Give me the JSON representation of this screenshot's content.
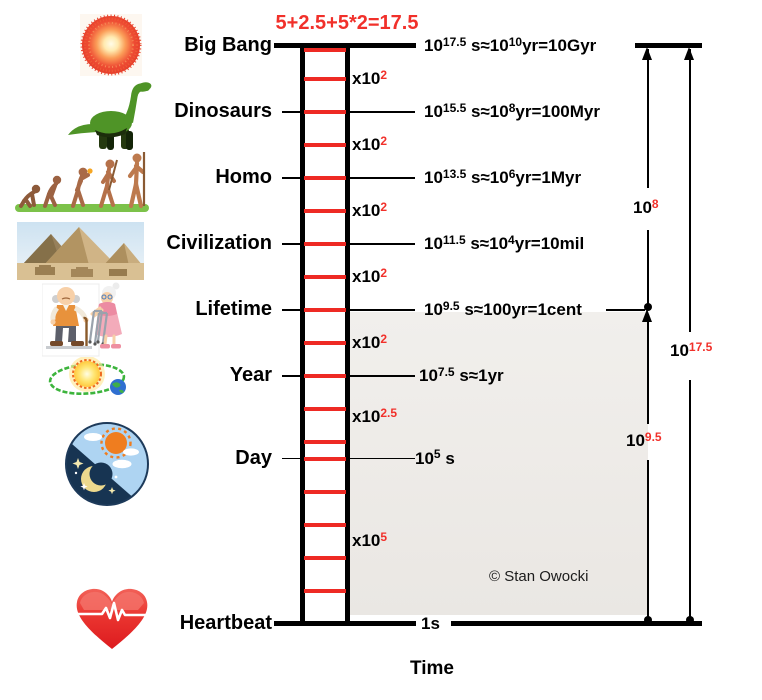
{
  "title": "5+2.5+5*2=17.5",
  "axis_label": "Time",
  "copyright": "© Stan Owocki",
  "colors": {
    "accent_red": "#f1302a",
    "rung_red": "#ee2a24",
    "black": "#000000",
    "shade_gray": "#eeebe8"
  },
  "scale": {
    "description": "logarithmic time scale in seconds",
    "top_exponent": 17.5,
    "bottom_exponent": 0,
    "rung_exponents": [
      17.5,
      16.5,
      15.5,
      14.5,
      13.5,
      12.5,
      11.5,
      10.5,
      9.5,
      8.5,
      7.5,
      6.5,
      5.5,
      5,
      4,
      3,
      2,
      1
    ]
  },
  "rows": [
    {
      "label": "Big Bang",
      "exponent": 17.5,
      "icon": "big-bang-icon",
      "segments": [
        {
          "t": "10"
        },
        {
          "t": "17.5",
          "sup": true
        },
        {
          "t": " s≈10"
        },
        {
          "t": "10",
          "sup": true
        },
        {
          "t": "yr=10Gyr"
        }
      ]
    },
    {
      "label": "Dinosaurs",
      "exponent": 15.5,
      "icon": "dinosaur-icon",
      "segments": [
        {
          "t": "10"
        },
        {
          "t": "15.5",
          "sup": true
        },
        {
          "t": " s≈10"
        },
        {
          "t": "8",
          "sup": true
        },
        {
          "t": "yr=100Myr"
        }
      ]
    },
    {
      "label": "Homo",
      "exponent": 13.5,
      "icon": "human-evolution-icon",
      "segments": [
        {
          "t": "10"
        },
        {
          "t": "13.5",
          "sup": true
        },
        {
          "t": " s≈10"
        },
        {
          "t": "6",
          "sup": true
        },
        {
          "t": "yr=1Myr"
        }
      ]
    },
    {
      "label": "Civilization",
      "exponent": 11.5,
      "icon": "pyramids-icon",
      "segments": [
        {
          "t": "10"
        },
        {
          "t": "11.5",
          "sup": true
        },
        {
          "t": " s≈10"
        },
        {
          "t": "4",
          "sup": true
        },
        {
          "t": "yr=10mil"
        }
      ]
    },
    {
      "label": "Lifetime",
      "exponent": 9.5,
      "icon": "elderly-couple-icon",
      "segments": [
        {
          "t": "10"
        },
        {
          "t": "9.5",
          "sup": true
        },
        {
          "t": " s≈100yr=1cent"
        }
      ]
    },
    {
      "label": "Year",
      "exponent": 7.5,
      "icon": "sun-orbit-icon",
      "segments": [
        {
          "t": "10"
        },
        {
          "t": "7.5",
          "sup": true
        },
        {
          "t": " s≈1yr"
        }
      ]
    },
    {
      "label": "Day",
      "exponent": 5,
      "icon": "day-night-icon",
      "segments": [
        {
          "t": "10"
        },
        {
          "t": "5",
          "sup": true
        },
        {
          "t": " s"
        }
      ]
    },
    {
      "label": "Heartbeat",
      "exponent": 0,
      "icon": "heart-icon",
      "segments": [
        {
          "t": "1s"
        }
      ]
    }
  ],
  "multipliers": [
    {
      "base": "x10",
      "sup": "2",
      "between": [
        17.5,
        15.5
      ]
    },
    {
      "base": "x10",
      "sup": "2",
      "between": [
        15.5,
        13.5
      ]
    },
    {
      "base": "x10",
      "sup": "2",
      "between": [
        13.5,
        11.5
      ]
    },
    {
      "base": "x10",
      "sup": "2",
      "between": [
        11.5,
        9.5
      ]
    },
    {
      "base": "x10",
      "sup": "2",
      "between": [
        9.5,
        7.5
      ]
    },
    {
      "base": "x10",
      "sup": "2.5",
      "between": [
        7.5,
        5
      ]
    },
    {
      "base": "x10",
      "sup": "5",
      "between": [
        5,
        0
      ]
    }
  ],
  "span_arrows": [
    {
      "base": "10",
      "sup": "8",
      "from_exponent": 17.5,
      "to_exponent": 9.5
    },
    {
      "base": "10",
      "sup": "9.5",
      "from_exponent": 9.5,
      "to_exponent": 0
    },
    {
      "base": "10",
      "sup": "17.5",
      "from_exponent": 17.5,
      "to_exponent": 0
    }
  ]
}
